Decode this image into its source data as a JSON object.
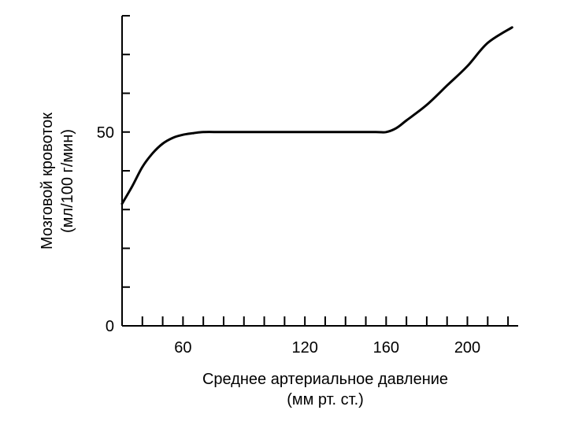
{
  "chart_data": {
    "type": "line",
    "title": "",
    "xlabel_line1": "Среднее артериальное давление",
    "xlabel_line2": "(мм рт. ст.)",
    "ylabel_line1": "Мозговой кровоток",
    "ylabel_line2": "(мл/100 г/мин)",
    "xlim": [
      30,
      225
    ],
    "ylim": [
      0,
      80
    ],
    "x_tick_labels": [
      "60",
      "120",
      "160",
      "200"
    ],
    "x_tick_values": [
      60,
      120,
      160,
      200
    ],
    "x_minor_ticks": [
      30,
      40,
      50,
      70,
      80,
      90,
      100,
      110,
      130,
      140,
      150,
      170,
      180,
      190,
      210,
      220
    ],
    "y_tick_labels": [
      "0",
      "50"
    ],
    "y_tick_values": [
      0,
      50
    ],
    "y_minor_ticks": [
      10,
      20,
      30,
      40,
      60,
      70
    ],
    "grid": false,
    "series": [
      {
        "x": [
          30,
          35,
          40,
          45,
          50,
          55,
          60,
          65,
          70,
          80,
          100,
          120,
          140,
          155,
          160,
          165,
          170,
          180,
          190,
          200,
          210,
          222
        ],
        "y": [
          31.5,
          36,
          41,
          44.5,
          47,
          48.5,
          49.3,
          49.7,
          50,
          50,
          50,
          50,
          50,
          50,
          50,
          51,
          53,
          57,
          62,
          67,
          73,
          77
        ]
      }
    ]
  }
}
